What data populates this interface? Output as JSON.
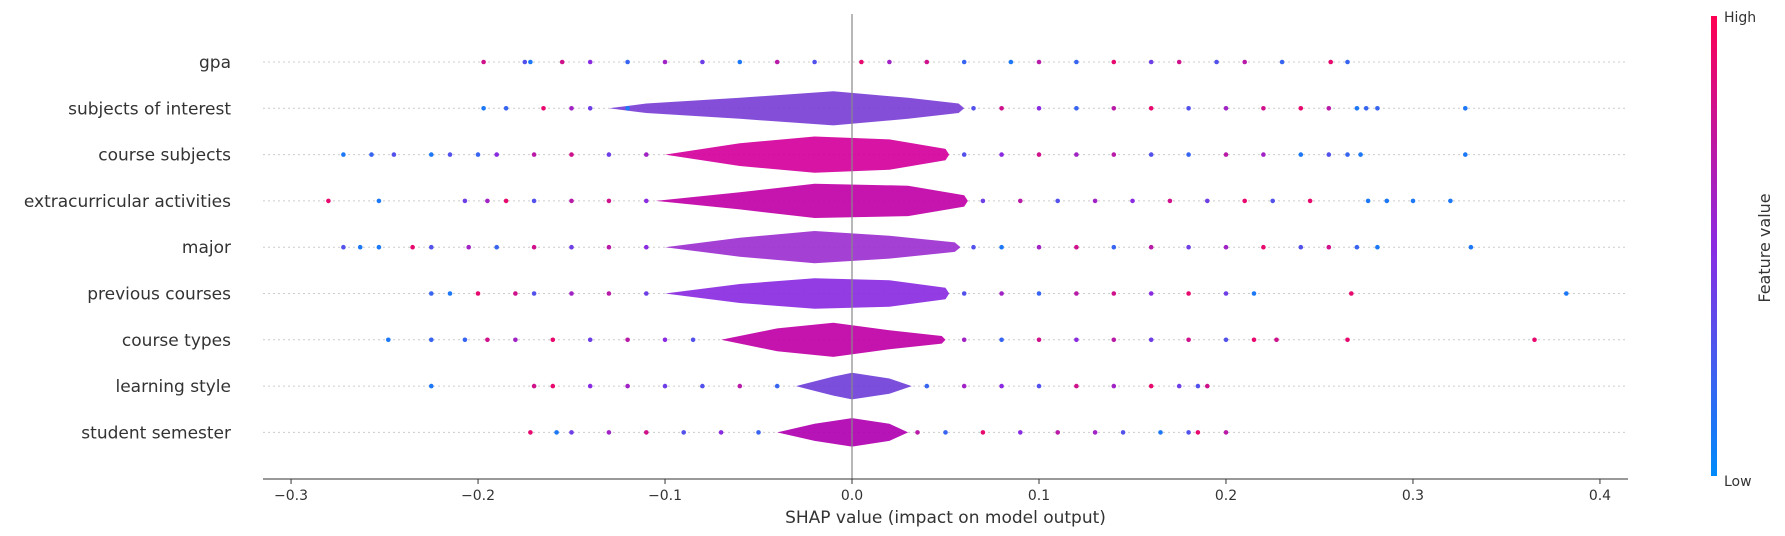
{
  "chart_data": {
    "type": "violin",
    "xlabel": "SHAP value (impact on model output)",
    "xlim": [
      -0.315,
      0.415
    ],
    "xticks": [
      -0.3,
      -0.2,
      -0.1,
      0.0,
      0.1,
      0.2,
      0.3,
      0.4
    ],
    "xtick_labels": [
      "−0.3",
      "−0.2",
      "−0.1",
      "0.0",
      "0.1",
      "0.2",
      "0.3",
      "0.4"
    ],
    "colorbar": {
      "label": "Feature value",
      "high_label": "High",
      "low_label": "Low",
      "low_color": "#008bfb",
      "high_color": "#ff0052"
    },
    "features": [
      {
        "name": "gpa",
        "density": [
          [
            -0.1,
            0.0
          ],
          [
            0.05,
            0.0
          ]
        ],
        "body_color": "#8a2be2",
        "points": [
          [
            -0.197,
            0.8
          ],
          [
            -0.175,
            0.3
          ],
          [
            -0.172,
            0.1
          ],
          [
            -0.155,
            0.8
          ],
          [
            -0.14,
            0.5
          ],
          [
            -0.12,
            0.2
          ],
          [
            -0.1,
            0.6
          ],
          [
            -0.08,
            0.4
          ],
          [
            -0.06,
            0.1
          ],
          [
            -0.04,
            0.7
          ],
          [
            -0.02,
            0.3
          ],
          [
            0.005,
            0.9
          ],
          [
            0.02,
            0.6
          ],
          [
            0.04,
            0.8
          ],
          [
            0.06,
            0.2
          ],
          [
            0.085,
            0.1
          ],
          [
            0.1,
            0.7
          ],
          [
            0.12,
            0.2
          ],
          [
            0.14,
            0.9
          ],
          [
            0.16,
            0.4
          ],
          [
            0.175,
            0.8
          ],
          [
            0.195,
            0.3
          ],
          [
            0.21,
            0.7
          ],
          [
            0.23,
            0.2
          ],
          [
            0.256,
            0.9
          ],
          [
            0.265,
            0.2
          ]
        ]
      },
      {
        "name": "subjects of interest",
        "density": [
          [
            -0.13,
            0.0
          ],
          [
            -0.11,
            0.25
          ],
          [
            -0.06,
            0.55
          ],
          [
            -0.01,
            0.9
          ],
          [
            0.03,
            0.55
          ],
          [
            0.057,
            0.25
          ],
          [
            0.06,
            0.0
          ]
        ],
        "body_color": "#7b3fd6",
        "points": [
          [
            -0.197,
            0.1
          ],
          [
            -0.185,
            0.2
          ],
          [
            -0.165,
            0.9
          ],
          [
            -0.15,
            0.6
          ],
          [
            -0.14,
            0.4
          ],
          [
            -0.12,
            0.1
          ],
          [
            0.065,
            0.3
          ],
          [
            0.08,
            0.8
          ],
          [
            0.1,
            0.5
          ],
          [
            0.12,
            0.2
          ],
          [
            0.14,
            0.7
          ],
          [
            0.16,
            0.9
          ],
          [
            0.18,
            0.3
          ],
          [
            0.2,
            0.6
          ],
          [
            0.22,
            0.8
          ],
          [
            0.24,
            0.9
          ],
          [
            0.255,
            0.7
          ],
          [
            0.27,
            0.1
          ],
          [
            0.275,
            0.2
          ],
          [
            0.281,
            0.2
          ],
          [
            0.328,
            0.1
          ]
        ]
      },
      {
        "name": "course subjects",
        "density": [
          [
            -0.1,
            0.0
          ],
          [
            -0.06,
            0.6
          ],
          [
            -0.02,
            0.95
          ],
          [
            0.02,
            0.8
          ],
          [
            0.05,
            0.3
          ],
          [
            0.052,
            0.0
          ]
        ],
        "body_color": "#d4009c",
        "points": [
          [
            -0.272,
            0.1
          ],
          [
            -0.257,
            0.2
          ],
          [
            -0.245,
            0.3
          ],
          [
            -0.225,
            0.1
          ],
          [
            -0.215,
            0.3
          ],
          [
            -0.2,
            0.2
          ],
          [
            -0.19,
            0.5
          ],
          [
            -0.17,
            0.7
          ],
          [
            -0.15,
            0.8
          ],
          [
            -0.13,
            0.4
          ],
          [
            -0.11,
            0.6
          ],
          [
            0.06,
            0.3
          ],
          [
            0.08,
            0.5
          ],
          [
            0.1,
            0.8
          ],
          [
            0.12,
            0.6
          ],
          [
            0.14,
            0.7
          ],
          [
            0.16,
            0.3
          ],
          [
            0.18,
            0.2
          ],
          [
            0.2,
            0.7
          ],
          [
            0.22,
            0.6
          ],
          [
            0.24,
            0.1
          ],
          [
            0.255,
            0.3
          ],
          [
            0.265,
            0.2
          ],
          [
            0.272,
            0.1
          ],
          [
            0.328,
            0.1
          ]
        ]
      },
      {
        "name": "extracurricular activities",
        "density": [
          [
            -0.105,
            0.0
          ],
          [
            -0.06,
            0.45
          ],
          [
            -0.02,
            0.9
          ],
          [
            0.03,
            0.8
          ],
          [
            0.06,
            0.3
          ],
          [
            0.062,
            0.0
          ]
        ],
        "body_color": "#c100a8",
        "points": [
          [
            -0.28,
            0.9
          ],
          [
            -0.253,
            0.1
          ],
          [
            -0.207,
            0.4
          ],
          [
            -0.195,
            0.6
          ],
          [
            -0.185,
            0.9
          ],
          [
            -0.17,
            0.3
          ],
          [
            -0.15,
            0.7
          ],
          [
            -0.13,
            0.8
          ],
          [
            -0.11,
            0.5
          ],
          [
            0.07,
            0.4
          ],
          [
            0.09,
            0.7
          ],
          [
            0.11,
            0.3
          ],
          [
            0.13,
            0.6
          ],
          [
            0.15,
            0.5
          ],
          [
            0.17,
            0.8
          ],
          [
            0.19,
            0.4
          ],
          [
            0.21,
            0.9
          ],
          [
            0.225,
            0.3
          ],
          [
            0.245,
            0.9
          ],
          [
            0.276,
            0.1
          ],
          [
            0.286,
            0.1
          ],
          [
            0.3,
            0.1
          ],
          [
            0.32,
            0.1
          ]
        ]
      },
      {
        "name": "major",
        "density": [
          [
            -0.1,
            0.0
          ],
          [
            -0.06,
            0.5
          ],
          [
            -0.02,
            0.85
          ],
          [
            0.02,
            0.6
          ],
          [
            0.055,
            0.25
          ],
          [
            0.058,
            0.0
          ]
        ],
        "body_color": "#9c30d0",
        "points": [
          [
            -0.272,
            0.3
          ],
          [
            -0.263,
            0.1
          ],
          [
            -0.253,
            0.1
          ],
          [
            -0.235,
            0.9
          ],
          [
            -0.225,
            0.3
          ],
          [
            -0.205,
            0.6
          ],
          [
            -0.19,
            0.2
          ],
          [
            -0.17,
            0.8
          ],
          [
            -0.15,
            0.4
          ],
          [
            -0.13,
            0.7
          ],
          [
            -0.11,
            0.5
          ],
          [
            0.065,
            0.3
          ],
          [
            0.08,
            0.1
          ],
          [
            0.1,
            0.6
          ],
          [
            0.12,
            0.8
          ],
          [
            0.14,
            0.2
          ],
          [
            0.16,
            0.7
          ],
          [
            0.18,
            0.4
          ],
          [
            0.2,
            0.6
          ],
          [
            0.22,
            0.9
          ],
          [
            0.24,
            0.3
          ],
          [
            0.255,
            0.8
          ],
          [
            0.27,
            0.2
          ],
          [
            0.281,
            0.1
          ],
          [
            0.331,
            0.1
          ]
        ]
      },
      {
        "name": "previous courses",
        "density": [
          [
            -0.1,
            0.0
          ],
          [
            -0.06,
            0.5
          ],
          [
            -0.02,
            0.8
          ],
          [
            0.02,
            0.7
          ],
          [
            0.05,
            0.3
          ],
          [
            0.052,
            0.0
          ]
        ],
        "body_color": "#8b2be2",
        "points": [
          [
            -0.225,
            0.2
          ],
          [
            -0.215,
            0.1
          ],
          [
            -0.2,
            0.9
          ],
          [
            -0.18,
            0.8
          ],
          [
            -0.17,
            0.3
          ],
          [
            -0.15,
            0.6
          ],
          [
            -0.13,
            0.7
          ],
          [
            -0.11,
            0.4
          ],
          [
            0.06,
            0.3
          ],
          [
            0.08,
            0.6
          ],
          [
            0.1,
            0.2
          ],
          [
            0.12,
            0.7
          ],
          [
            0.14,
            0.8
          ],
          [
            0.16,
            0.5
          ],
          [
            0.18,
            0.9
          ],
          [
            0.2,
            0.4
          ],
          [
            0.215,
            0.1
          ],
          [
            0.267,
            0.9
          ],
          [
            0.382,
            0.1
          ]
        ]
      },
      {
        "name": "course types",
        "density": [
          [
            -0.07,
            0.0
          ],
          [
            -0.04,
            0.6
          ],
          [
            -0.01,
            0.9
          ],
          [
            0.02,
            0.5
          ],
          [
            0.048,
            0.2
          ],
          [
            0.05,
            0.0
          ]
        ],
        "body_color": "#c000a6",
        "points": [
          [
            -0.248,
            0.1
          ],
          [
            -0.225,
            0.2
          ],
          [
            -0.207,
            0.2
          ],
          [
            -0.195,
            0.8
          ],
          [
            -0.18,
            0.6
          ],
          [
            -0.16,
            0.9
          ],
          [
            -0.14,
            0.4
          ],
          [
            -0.12,
            0.7
          ],
          [
            -0.1,
            0.5
          ],
          [
            -0.085,
            0.3
          ],
          [
            0.06,
            0.6
          ],
          [
            0.08,
            0.2
          ],
          [
            0.1,
            0.8
          ],
          [
            0.12,
            0.5
          ],
          [
            0.14,
            0.7
          ],
          [
            0.16,
            0.4
          ],
          [
            0.18,
            0.8
          ],
          [
            0.2,
            0.3
          ],
          [
            0.215,
            0.9
          ],
          [
            0.227,
            0.8
          ],
          [
            0.265,
            0.9
          ],
          [
            0.365,
            0.9
          ]
        ]
      },
      {
        "name": "learning style",
        "density": [
          [
            -0.03,
            0.0
          ],
          [
            -0.01,
            0.5
          ],
          [
            0.0,
            0.7
          ],
          [
            0.02,
            0.4
          ],
          [
            0.032,
            0.0
          ]
        ],
        "body_color": "#7040d8",
        "points": [
          [
            -0.225,
            0.1
          ],
          [
            -0.17,
            0.8
          ],
          [
            -0.16,
            0.9
          ],
          [
            -0.14,
            0.5
          ],
          [
            -0.12,
            0.6
          ],
          [
            -0.1,
            0.4
          ],
          [
            -0.08,
            0.3
          ],
          [
            -0.06,
            0.7
          ],
          [
            -0.04,
            0.2
          ],
          [
            0.04,
            0.2
          ],
          [
            0.06,
            0.6
          ],
          [
            0.08,
            0.5
          ],
          [
            0.1,
            0.3
          ],
          [
            0.12,
            0.8
          ],
          [
            0.14,
            0.6
          ],
          [
            0.16,
            0.9
          ],
          [
            0.175,
            0.4
          ],
          [
            0.185,
            0.3
          ],
          [
            0.19,
            0.8
          ]
        ]
      },
      {
        "name": "student semester",
        "density": [
          [
            -0.04,
            0.0
          ],
          [
            -0.02,
            0.45
          ],
          [
            0.0,
            0.75
          ],
          [
            0.02,
            0.45
          ],
          [
            0.03,
            0.0
          ]
        ],
        "body_color": "#b000b0",
        "points": [
          [
            -0.172,
            0.9
          ],
          [
            -0.158,
            0.1
          ],
          [
            -0.15,
            0.4
          ],
          [
            -0.13,
            0.6
          ],
          [
            -0.11,
            0.8
          ],
          [
            -0.09,
            0.3
          ],
          [
            -0.07,
            0.5
          ],
          [
            -0.05,
            0.2
          ],
          [
            0.035,
            0.7
          ],
          [
            0.05,
            0.2
          ],
          [
            0.07,
            0.9
          ],
          [
            0.09,
            0.5
          ],
          [
            0.11,
            0.7
          ],
          [
            0.13,
            0.6
          ],
          [
            0.145,
            0.3
          ],
          [
            0.165,
            0.1
          ],
          [
            0.18,
            0.3
          ],
          [
            0.185,
            0.9
          ],
          [
            0.2,
            0.7
          ]
        ]
      }
    ]
  }
}
